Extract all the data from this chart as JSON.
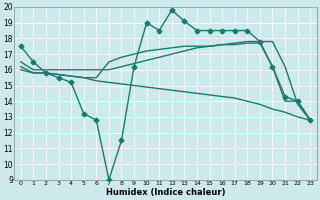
{
  "xlabel": "Humidex (Indice chaleur)",
  "xlim": [
    -0.5,
    23.5
  ],
  "ylim": [
    9,
    20
  ],
  "yticks": [
    9,
    10,
    11,
    12,
    13,
    14,
    15,
    16,
    17,
    18,
    19,
    20
  ],
  "xticks": [
    0,
    1,
    2,
    3,
    4,
    5,
    6,
    7,
    8,
    9,
    10,
    11,
    12,
    13,
    14,
    15,
    16,
    17,
    18,
    19,
    20,
    21,
    22,
    23
  ],
  "bg_color": "#cce9ec",
  "grid_color": "#ffffff",
  "line_color": "#1a7a6e",
  "lines": [
    {
      "x": [
        0,
        1,
        2,
        3,
        4,
        5,
        6,
        7,
        8,
        9,
        10,
        11,
        12,
        13,
        14,
        15,
        16,
        17,
        18,
        19,
        20,
        21,
        22,
        23
      ],
      "y": [
        17.5,
        16.5,
        15.8,
        15.5,
        15.2,
        13.2,
        12.8,
        9.0,
        11.5,
        16.2,
        19.0,
        18.5,
        19.8,
        19.1,
        18.5,
        18.5,
        18.5,
        18.5,
        18.5,
        17.8,
        16.2,
        14.3,
        14.0,
        12.8
      ],
      "marker": "D",
      "markersize": 2.5,
      "linewidth": 1.0
    },
    {
      "x": [
        0,
        1,
        2,
        3,
        4,
        5,
        6,
        7,
        8,
        9,
        10,
        11,
        12,
        13,
        14,
        15,
        16,
        17,
        18,
        19,
        20,
        21,
        22,
        23
      ],
      "y": [
        16.5,
        16.0,
        16.0,
        16.0,
        16.0,
        16.0,
        16.0,
        16.0,
        16.2,
        16.4,
        16.6,
        16.8,
        17.0,
        17.2,
        17.4,
        17.5,
        17.6,
        17.7,
        17.8,
        17.8,
        17.8,
        16.2,
        13.8,
        12.8
      ],
      "marker": null,
      "markersize": 0,
      "linewidth": 1.0
    },
    {
      "x": [
        0,
        1,
        2,
        3,
        4,
        5,
        6,
        7,
        8,
        9,
        10,
        11,
        12,
        13,
        14,
        15,
        16,
        17,
        18,
        19,
        20,
        21,
        22,
        23
      ],
      "y": [
        16.2,
        15.8,
        15.8,
        15.7,
        15.6,
        15.5,
        15.3,
        15.2,
        15.1,
        15.0,
        14.9,
        14.8,
        14.7,
        14.6,
        14.5,
        14.4,
        14.3,
        14.2,
        14.0,
        13.8,
        13.5,
        13.3,
        13.0,
        12.8
      ],
      "marker": null,
      "markersize": 0,
      "linewidth": 1.0
    },
    {
      "x": [
        0,
        1,
        2,
        3,
        4,
        5,
        6,
        7,
        8,
        9,
        10,
        11,
        12,
        13,
        14,
        15,
        16,
        17,
        18,
        19,
        20,
        21,
        22,
        23
      ],
      "y": [
        16.0,
        15.8,
        15.8,
        15.7,
        15.6,
        15.5,
        15.5,
        16.5,
        16.8,
        17.0,
        17.2,
        17.3,
        17.4,
        17.5,
        17.5,
        17.5,
        17.6,
        17.6,
        17.7,
        17.7,
        16.2,
        14.0,
        14.0,
        12.8
      ],
      "marker": null,
      "markersize": 0,
      "linewidth": 1.0
    }
  ]
}
